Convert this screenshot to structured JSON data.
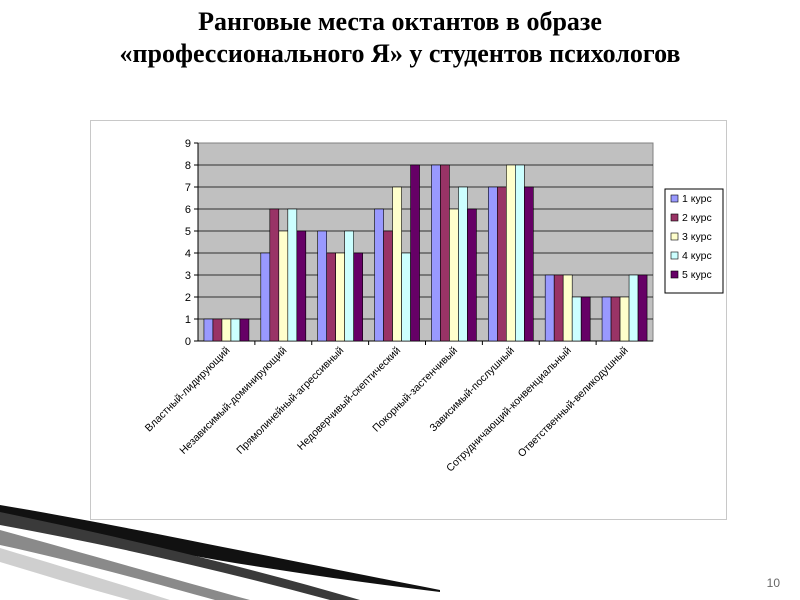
{
  "slide": {
    "title_line1": "Ранговые места октантов в образе",
    "title_line2": "«профессионального Я» у студентов психологов",
    "page_number": "10"
  },
  "chart_data": {
    "type": "bar",
    "title": "",
    "xlabel": "",
    "ylabel": "",
    "ylim": [
      0,
      9
    ],
    "ytick_step": 1,
    "grid": true,
    "legend_position": "right",
    "categories": [
      "Властный-лидирующий",
      "Независимый-доминирующий",
      "Прямолинейный-агрессивный",
      "Недоверчивый-скептический",
      "Покорный-застенчивый",
      "Зависимый-послушный",
      "Сотрудничающий-конвенциальный",
      "Ответственный-великодушный"
    ],
    "series": [
      {
        "name": "1 курс",
        "color": "#9999ff",
        "values": [
          1,
          4,
          5,
          6,
          8,
          7,
          3,
          2
        ]
      },
      {
        "name": "2 курс",
        "color": "#993366",
        "values": [
          1,
          6,
          4,
          5,
          8,
          7,
          3,
          2
        ]
      },
      {
        "name": "3 курс",
        "color": "#ffffcc",
        "values": [
          1,
          5,
          4,
          7,
          6,
          8,
          3,
          2
        ]
      },
      {
        "name": "4 курс",
        "color": "#ccffff",
        "values": [
          1,
          6,
          5,
          4,
          7,
          8,
          2,
          3
        ]
      },
      {
        "name": "5 курс",
        "color": "#660066",
        "values": [
          1,
          5,
          4,
          8,
          6,
          7,
          2,
          3
        ]
      }
    ]
  }
}
